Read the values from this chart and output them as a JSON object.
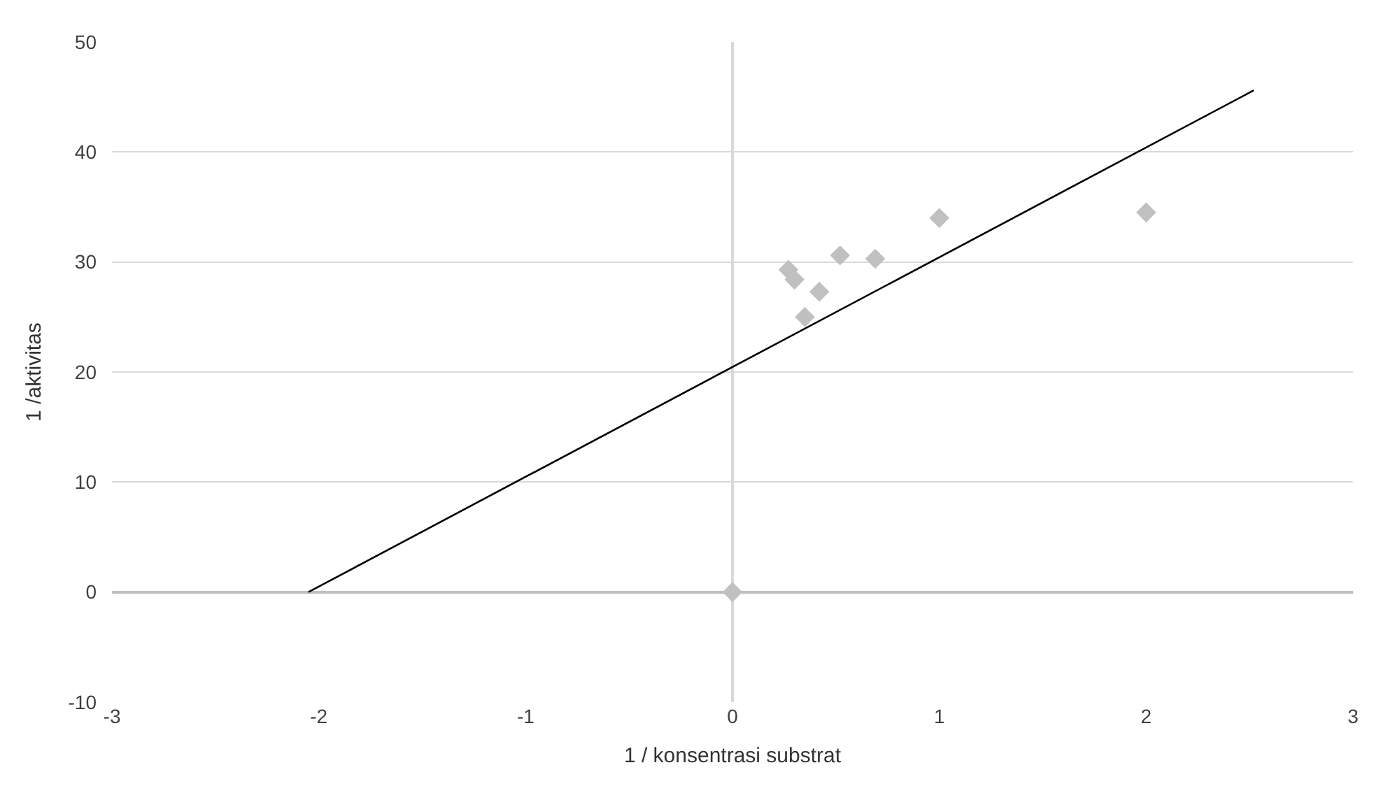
{
  "chart_data": {
    "type": "scatter",
    "xlabel": "1 / konsentrasi substrat",
    "ylabel": "1 /aktivitas",
    "xlim": [
      -3,
      3
    ],
    "ylim": [
      -10,
      50
    ],
    "xticks": [
      -3,
      -2,
      -1,
      0,
      1,
      2,
      3
    ],
    "yticks": [
      -10,
      0,
      10,
      20,
      30,
      40,
      50
    ],
    "grid": "y",
    "marker": "diamond",
    "series": [
      {
        "color": "#c0c0c0",
        "x": [
          0,
          0.27,
          0.3,
          0.35,
          0.42,
          0.52,
          0.69,
          1.0,
          2.0
        ],
        "values": [
          0,
          29.3,
          28.4,
          25.0,
          27.3,
          30.6,
          30.3,
          34.0,
          34.5
        ]
      },
      {
        "type": "line",
        "color": "#000000",
        "x": [
          -2.05,
          2.52
        ],
        "values": [
          0,
          45.6
        ],
        "marker": "none"
      }
    ]
  }
}
